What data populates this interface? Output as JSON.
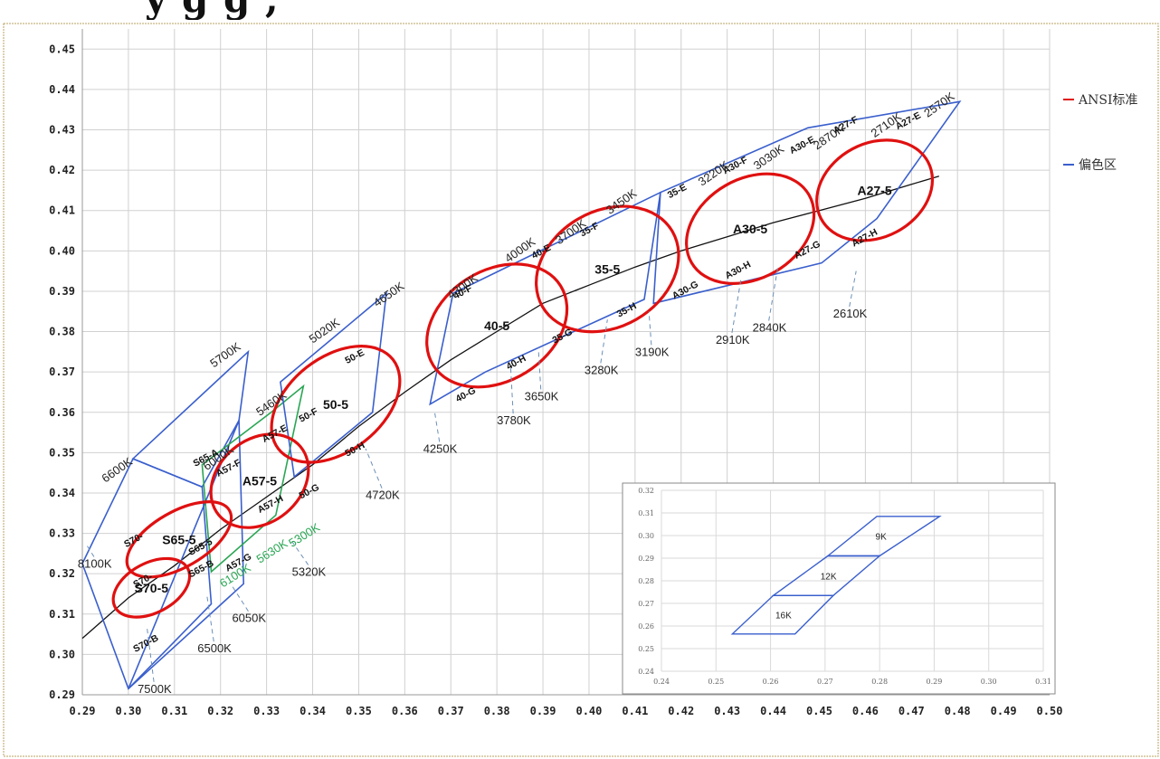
{
  "header_fragment": "y g g ,",
  "chart_data": {
    "type": "line",
    "xlim": [
      0.29,
      0.5
    ],
    "ylim": [
      0.29,
      0.455
    ],
    "x_ticks": [
      "0.29",
      "0.30",
      "0.31",
      "0.32",
      "0.33",
      "0.34",
      "0.35",
      "0.36",
      "0.37",
      "0.38",
      "0.39",
      "0.40",
      "0.41",
      "0.42",
      "0.43",
      "0.44",
      "0.45",
      "0.46",
      "0.47",
      "0.48",
      "0.49",
      "0.50"
    ],
    "y_ticks": [
      "0.29",
      "0.30",
      "0.31",
      "0.32",
      "0.33",
      "0.34",
      "0.35",
      "0.36",
      "0.37",
      "0.38",
      "0.39",
      "0.40",
      "0.41",
      "0.42",
      "0.43",
      "0.44",
      "0.45"
    ],
    "grid": true,
    "legend_position": "right",
    "legend": [
      {
        "label": "ANSI标准",
        "color": "#e01010"
      },
      {
        "label": "偏色区",
        "color": "#3a5fcd"
      }
    ],
    "colors": {
      "ansi": "#e01010",
      "bin": "#3a5fcd",
      "green_bin": "#2aa654",
      "locus": "#111111",
      "dashed": "#6b8fb8"
    },
    "planckian_locus": [
      {
        "x": 0.29,
        "y": 0.304
      },
      {
        "x": 0.3,
        "y": 0.314
      },
      {
        "x": 0.31,
        "y": 0.322
      },
      {
        "x": 0.32,
        "y": 0.331
      },
      {
        "x": 0.33,
        "y": 0.339
      },
      {
        "x": 0.34,
        "y": 0.347
      },
      {
        "x": 0.35,
        "y": 0.3565
      },
      {
        "x": 0.36,
        "y": 0.365
      },
      {
        "x": 0.37,
        "y": 0.373
      },
      {
        "x": 0.38,
        "y": 0.38
      },
      {
        "x": 0.39,
        "y": 0.387
      },
      {
        "x": 0.4,
        "y": 0.3915
      },
      {
        "x": 0.41,
        "y": 0.396
      },
      {
        "x": 0.42,
        "y": 0.4
      },
      {
        "x": 0.43,
        "y": 0.4035
      },
      {
        "x": 0.44,
        "y": 0.407
      },
      {
        "x": 0.45,
        "y": 0.41
      },
      {
        "x": 0.46,
        "y": 0.413
      },
      {
        "x": 0.47,
        "y": 0.4165
      },
      {
        "x": 0.476,
        "y": 0.4185
      }
    ],
    "bin_polygons": [
      {
        "points": [
          [
            0.29,
            0.3225
          ],
          [
            0.301,
            0.3485
          ],
          [
            0.316,
            0.3415
          ],
          [
            0.318,
            0.3125
          ],
          [
            0.3,
            0.2915
          ]
        ],
        "color": "blue"
      },
      {
        "points": [
          [
            0.301,
            0.3485
          ],
          [
            0.326,
            0.375
          ],
          [
            0.324,
            0.358
          ],
          [
            0.316,
            0.3415
          ]
        ],
        "color": "blue"
      },
      {
        "points": [
          [
            0.3,
            0.2915
          ],
          [
            0.325,
            0.3175
          ],
          [
            0.324,
            0.358
          ]
        ],
        "color": "blue"
      },
      {
        "points": [
          [
            0.316,
            0.347
          ],
          [
            0.331,
            0.36
          ],
          [
            0.338,
            0.3665
          ],
          [
            0.332,
            0.3345
          ],
          [
            0.318,
            0.3205
          ]
        ],
        "color": "green"
      },
      {
        "points": [
          [
            0.333,
            0.3675
          ],
          [
            0.356,
            0.3895
          ],
          [
            0.353,
            0.36
          ],
          [
            0.336,
            0.344
          ]
        ],
        "color": "blue"
      },
      {
        "points": [
          [
            0.3655,
            0.362
          ],
          [
            0.3705,
            0.3895
          ],
          [
            0.4155,
            0.4145
          ],
          [
            0.412,
            0.388
          ],
          [
            0.3775,
            0.37
          ]
        ],
        "color": "blue"
      },
      {
        "points": [
          [
            0.4155,
            0.4145
          ],
          [
            0.4475,
            0.4305
          ],
          [
            0.4805,
            0.437
          ],
          [
            0.4625,
            0.408
          ],
          [
            0.4505,
            0.397
          ],
          [
            0.414,
            0.387
          ]
        ],
        "color": "blue"
      }
    ],
    "ansi_ellipses": [
      {
        "label": "S70-5",
        "cx": 0.305,
        "cy": 0.3165,
        "rx": 0.0045,
        "ry": 0.0085,
        "angle": 62
      },
      {
        "label": "S65-5",
        "cx": 0.311,
        "cy": 0.3285,
        "rx": 0.005,
        "ry": 0.012,
        "angle": 60
      },
      {
        "label": "A57-5",
        "cx": 0.3285,
        "cy": 0.343,
        "rx": 0.0075,
        "ry": 0.011,
        "angle": 50
      },
      {
        "label": "50-5",
        "cx": 0.345,
        "cy": 0.362,
        "rx": 0.0085,
        "ry": 0.015,
        "angle": 52
      },
      {
        "label": "40-5",
        "cx": 0.38,
        "cy": 0.3815,
        "rx": 0.01,
        "ry": 0.0155,
        "angle": 58
      },
      {
        "label": "35-5",
        "cx": 0.404,
        "cy": 0.3955,
        "rx": 0.0105,
        "ry": 0.0155,
        "angle": 60
      },
      {
        "label": "A30-5",
        "cx": 0.435,
        "cy": 0.4055,
        "rx": 0.009,
        "ry": 0.014,
        "angle": 60
      },
      {
        "label": "A27-5",
        "cx": 0.462,
        "cy": 0.415,
        "rx": 0.0085,
        "ry": 0.0125,
        "angle": 62
      }
    ],
    "cct_labels": [
      {
        "text": "8100K",
        "x": 0.289,
        "y": 0.3215,
        "anchor": [
          0.291,
          0.327
        ]
      },
      {
        "text": "7500K",
        "x": 0.302,
        "y": 0.2905,
        "anchor": [
          0.304,
          0.307
        ]
      },
      {
        "text": "6600K",
        "x": 0.295,
        "y": 0.3425
      },
      {
        "text": "6500K",
        "x": 0.315,
        "y": 0.3005,
        "anchor": [
          0.317,
          0.315
        ]
      },
      {
        "text": "6050K",
        "x": 0.3225,
        "y": 0.308,
        "anchor": [
          0.3225,
          0.317
        ]
      },
      {
        "text": "6000K",
        "x": 0.317,
        "y": 0.3455
      },
      {
        "text": "5700K",
        "x": 0.3185,
        "y": 0.371
      },
      {
        "text": "5460K",
        "x": 0.3285,
        "y": 0.359
      },
      {
        "text": "5320K",
        "x": 0.3355,
        "y": 0.3195,
        "anchor": [
          0.3355,
          0.328
        ]
      },
      {
        "text": "5020K",
        "x": 0.34,
        "y": 0.377
      },
      {
        "text": "4720K",
        "x": 0.3515,
        "y": 0.3385,
        "anchor": [
          0.3515,
          0.351
        ]
      },
      {
        "text": "4650K",
        "x": 0.354,
        "y": 0.386
      },
      {
        "text": "4300K",
        "x": 0.37,
        "y": 0.388
      },
      {
        "text": "4250K",
        "x": 0.364,
        "y": 0.35,
        "anchor": [
          0.3665,
          0.36
        ]
      },
      {
        "text": "4000K",
        "x": 0.3825,
        "y": 0.397
      },
      {
        "text": "3780K",
        "x": 0.38,
        "y": 0.357,
        "anchor": [
          0.383,
          0.371
        ]
      },
      {
        "text": "3700K",
        "x": 0.3935,
        "y": 0.4015
      },
      {
        "text": "3650K",
        "x": 0.386,
        "y": 0.363,
        "anchor": [
          0.389,
          0.376
        ]
      },
      {
        "text": "3450K",
        "x": 0.4045,
        "y": 0.409
      },
      {
        "text": "3280K",
        "x": 0.399,
        "y": 0.3695,
        "anchor": [
          0.404,
          0.383
        ]
      },
      {
        "text": "3220K",
        "x": 0.4245,
        "y": 0.416
      },
      {
        "text": "3190K",
        "x": 0.41,
        "y": 0.374,
        "anchor": [
          0.413,
          0.385
        ]
      },
      {
        "text": "3030K",
        "x": 0.4365,
        "y": 0.42
      },
      {
        "text": "2910K",
        "x": 0.4275,
        "y": 0.377,
        "anchor": [
          0.433,
          0.393
        ]
      },
      {
        "text": "2870K",
        "x": 0.4495,
        "y": 0.425
      },
      {
        "text": "2840K",
        "x": 0.4355,
        "y": 0.38,
        "anchor": [
          0.441,
          0.396
        ]
      },
      {
        "text": "2710K",
        "x": 0.462,
        "y": 0.428
      },
      {
        "text": "2610K",
        "x": 0.453,
        "y": 0.3835,
        "anchor": [
          0.458,
          0.395
        ]
      },
      {
        "text": "2570K",
        "x": 0.4735,
        "y": 0.433
      }
    ],
    "green_labels": [
      "6100K",
      "5630K",
      "5300K"
    ],
    "bin_labels": [
      "S70-",
      "S70-",
      "S70-B",
      "S65-A",
      "S65-5",
      "S65-B",
      "A57-F",
      "A57-E",
      "A57-H",
      "A57-G",
      "50-F",
      "50-E",
      "50-G",
      "50-H",
      "40-F",
      "40-E",
      "40-H",
      "40-G",
      "35-F",
      "35-E",
      "35-G",
      "35-H",
      "A30-F",
      "A30-E",
      "A30-G",
      "A30-H",
      "A27-F",
      "A27-E",
      "A27-G",
      "A27-H"
    ],
    "inset": {
      "xlim": [
        0.24,
        0.31
      ],
      "ylim": [
        0.24,
        0.32
      ],
      "x_ticks": [
        "0.24",
        "0.25",
        "0.26",
        "0.27",
        "0.28",
        "0.29",
        "0.30",
        "0.31"
      ],
      "y_ticks": [
        "0.24",
        "0.25",
        "0.26",
        "0.27",
        "0.28",
        "0.29",
        "0.30",
        "0.31",
        "0.32"
      ],
      "bins": [
        {
          "label": "16K",
          "points": [
            [
              0.253,
              0.2565
            ],
            [
              0.2645,
              0.2565
            ],
            [
              0.2715,
              0.2735
            ],
            [
              0.2605,
              0.2735
            ]
          ]
        },
        {
          "label": "12K",
          "points": [
            [
              0.2605,
              0.2735
            ],
            [
              0.2715,
              0.2735
            ],
            [
              0.28,
              0.291
            ],
            [
              0.2705,
              0.291
            ]
          ]
        },
        {
          "label": "9K",
          "points": [
            [
              0.2705,
              0.291
            ],
            [
              0.28,
              0.291
            ],
            [
              0.291,
              0.3085
            ],
            [
              0.2795,
              0.3085
            ]
          ]
        }
      ]
    }
  }
}
